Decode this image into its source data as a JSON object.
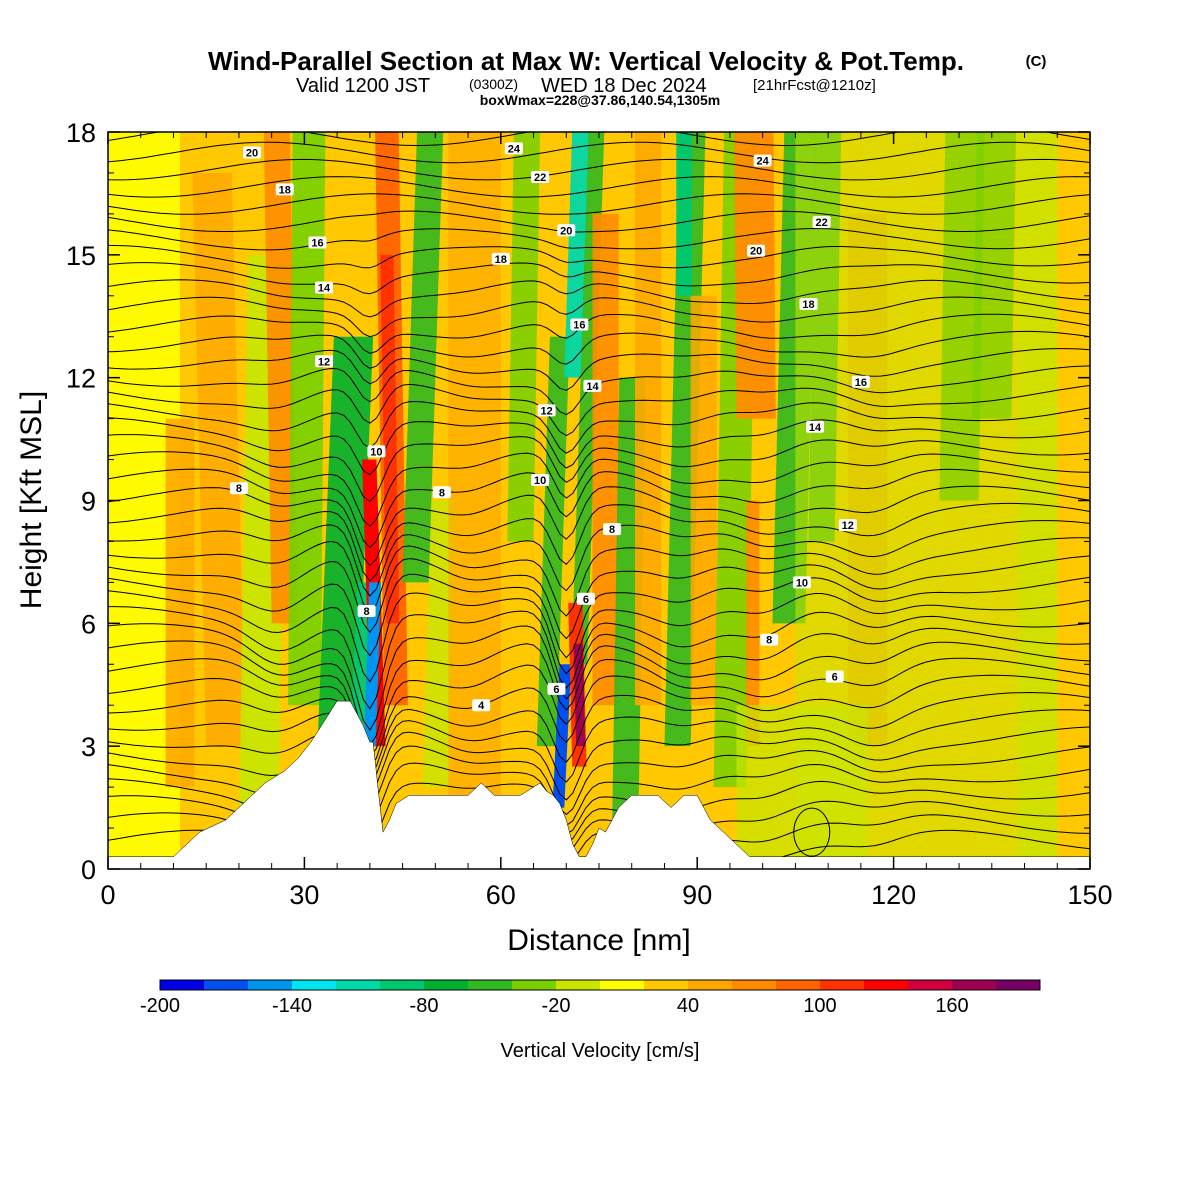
{
  "header": {
    "title": "Wind-Parallel Section at Max W: Vertical Velocity & Pot.Temp.",
    "title_mark": "(C)",
    "valid_prefix": "Valid 1200 JST",
    "valid_utc": "(0300Z)",
    "valid_date": "WED 18 Dec 2024",
    "forecast": "[21hrFcst@1210z]",
    "boxinfo": "boxWmax=228@37.86,140.54,1305m"
  },
  "chart_data": {
    "type": "heatmap",
    "xlabel": "Distance [nm]",
    "ylabel": "Height [Kft MSL]",
    "xlim": [
      0,
      150
    ],
    "ylim": [
      0,
      18
    ],
    "x_ticks": [
      0,
      30,
      60,
      90,
      120,
      150
    ],
    "y_ticks": [
      0,
      3,
      6,
      9,
      12,
      15,
      18
    ],
    "colorbar": {
      "label": "Vertical Velocity [cm/s]",
      "range": [
        -200,
        200
      ],
      "ticks": [
        -200,
        -140,
        -80,
        -20,
        40,
        100,
        160
      ],
      "colors": [
        "#0000e6",
        "#0050f0",
        "#0096f0",
        "#00e6f0",
        "#00d8a8",
        "#00c870",
        "#00b030",
        "#32b820",
        "#78d000",
        "#c8e600",
        "#ffff00",
        "#ffc800",
        "#ffa800",
        "#ff8c00",
        "#ff6400",
        "#ff3200",
        "#ff0000",
        "#d2003c",
        "#a00050",
        "#780064"
      ]
    },
    "terrain_kft": [
      [
        0,
        0.3
      ],
      [
        10,
        0.3
      ],
      [
        12,
        0.6
      ],
      [
        14,
        0.9
      ],
      [
        18,
        1.2
      ],
      [
        20,
        1.5
      ],
      [
        22,
        1.8
      ],
      [
        24,
        2.1
      ],
      [
        27,
        2.4
      ],
      [
        29,
        2.7
      ],
      [
        31,
        3.1
      ],
      [
        33,
        3.6
      ],
      [
        35,
        4.1
      ],
      [
        37,
        4.1
      ],
      [
        38,
        3.8
      ],
      [
        39,
        3.5
      ],
      [
        40,
        3.1
      ],
      [
        40.5,
        3.1
      ],
      [
        41.5,
        1.6
      ],
      [
        42,
        0.9
      ],
      [
        43,
        1.2
      ],
      [
        44,
        1.6
      ],
      [
        46,
        1.8
      ],
      [
        50,
        1.8
      ],
      [
        55,
        1.8
      ],
      [
        57,
        2.1
      ],
      [
        59,
        1.8
      ],
      [
        63,
        1.8
      ],
      [
        66,
        2.1
      ],
      [
        67,
        1.9
      ],
      [
        68,
        1.8
      ],
      [
        69,
        1.6
      ],
      [
        70,
        1.2
      ],
      [
        71,
        0.6
      ],
      [
        72,
        0.3
      ],
      [
        73,
        0.3
      ],
      [
        74,
        0.6
      ],
      [
        75,
        1.0
      ],
      [
        76,
        0.9
      ],
      [
        77,
        1.2
      ],
      [
        78,
        1.5
      ],
      [
        80,
        1.8
      ],
      [
        84,
        1.8
      ],
      [
        86,
        1.5
      ],
      [
        88,
        1.8
      ],
      [
        90,
        1.8
      ],
      [
        91,
        1.5
      ],
      [
        92,
        1.2
      ],
      [
        94,
        0.9
      ],
      [
        96,
        0.6
      ],
      [
        98,
        0.3
      ],
      [
        150,
        0.3
      ]
    ],
    "isentrope_labels": [
      {
        "text": "20",
        "x": 22,
        "y": 17.5
      },
      {
        "text": "18",
        "x": 27,
        "y": 16.6
      },
      {
        "text": "16",
        "x": 32,
        "y": 15.3
      },
      {
        "text": "14",
        "x": 33,
        "y": 14.2
      },
      {
        "text": "12",
        "x": 33,
        "y": 12.4
      },
      {
        "text": "8",
        "x": 20,
        "y": 9.3
      },
      {
        "text": "10",
        "x": 41,
        "y": 10.2
      },
      {
        "text": "8",
        "x": 39.5,
        "y": 6.3
      },
      {
        "text": "8",
        "x": 51,
        "y": 9.2
      },
      {
        "text": "4",
        "x": 57,
        "y": 4.0
      },
      {
        "text": "24",
        "x": 62,
        "y": 17.6
      },
      {
        "text": "22",
        "x": 66,
        "y": 16.9
      },
      {
        "text": "20",
        "x": 70,
        "y": 15.6
      },
      {
        "text": "18",
        "x": 60,
        "y": 14.9
      },
      {
        "text": "16",
        "x": 72,
        "y": 13.3
      },
      {
        "text": "14",
        "x": 74,
        "y": 11.8
      },
      {
        "text": "12",
        "x": 67,
        "y": 11.2
      },
      {
        "text": "10",
        "x": 66,
        "y": 9.5
      },
      {
        "text": "8",
        "x": 77,
        "y": 8.3
      },
      {
        "text": "6",
        "x": 73,
        "y": 6.6
      },
      {
        "text": "6",
        "x": 68.5,
        "y": 4.4
      },
      {
        "text": "24",
        "x": 100,
        "y": 17.3
      },
      {
        "text": "22",
        "x": 109,
        "y": 15.8
      },
      {
        "text": "20",
        "x": 99,
        "y": 15.1
      },
      {
        "text": "18",
        "x": 107,
        "y": 13.8
      },
      {
        "text": "16",
        "x": 115,
        "y": 11.9
      },
      {
        "text": "14",
        "x": 108,
        "y": 10.8
      },
      {
        "text": "12",
        "x": 113,
        "y": 8.4
      },
      {
        "text": "10",
        "x": 106,
        "y": 7.0
      },
      {
        "text": "8",
        "x": 101,
        "y": 5.6
      },
      {
        "text": "6",
        "x": 111,
        "y": 4.7
      }
    ]
  }
}
